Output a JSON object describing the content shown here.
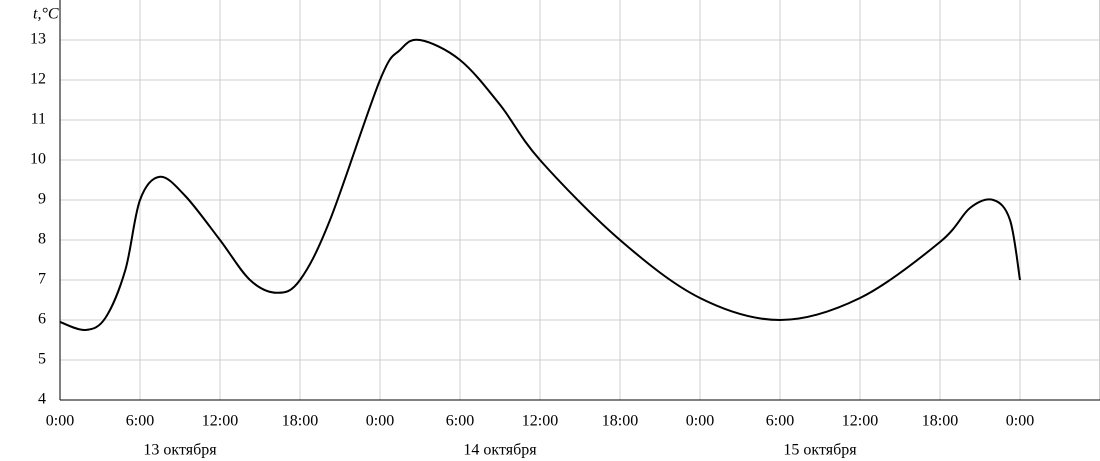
{
  "chart_data": {
    "type": "line",
    "y_label": "t,°C",
    "x": [
      0,
      1.9,
      3.4,
      4.9,
      6,
      7.5,
      9.4,
      12,
      14.25,
      16.3,
      18,
      20.25,
      24,
      25.5,
      27,
      30,
      33,
      36,
      42,
      48,
      54,
      60,
      66,
      68.25,
      70,
      71.25,
      72
    ],
    "series": [
      {
        "color": "#000000",
        "values": [
          5.95,
          5.75,
          6.05,
          7.25,
          9,
          9.58,
          9.1,
          8,
          7,
          6.68,
          7,
          8.5,
          12,
          12.75,
          13,
          12.5,
          11.38,
          10,
          8,
          6.55,
          6,
          6.55,
          7.95,
          8.8,
          9,
          8.5,
          7
        ]
      }
    ],
    "xlim": [
      0,
      78
    ],
    "xticks": [
      {
        "value": 0,
        "label": "0:00"
      },
      {
        "value": 6,
        "label": "6:00"
      },
      {
        "value": 12,
        "label": "12:00"
      },
      {
        "value": 18,
        "label": "18:00"
      },
      {
        "value": 24,
        "label": "0:00"
      },
      {
        "value": 30,
        "label": "6:00"
      },
      {
        "value": 36,
        "label": "12:00"
      },
      {
        "value": 42,
        "label": "18:00"
      },
      {
        "value": 48,
        "label": "0:00"
      },
      {
        "value": 54,
        "label": "6:00"
      },
      {
        "value": 60,
        "label": "12:00"
      },
      {
        "value": 66,
        "label": "18:00"
      },
      {
        "value": 72,
        "label": "0:00"
      }
    ],
    "ylim": [
      4,
      14
    ],
    "yticks": [
      4,
      5,
      6,
      7,
      8,
      9,
      10,
      11,
      12,
      13
    ],
    "date_labels": [
      "13 октября",
      "14 октября",
      "15 октября"
    ],
    "grid": true
  }
}
